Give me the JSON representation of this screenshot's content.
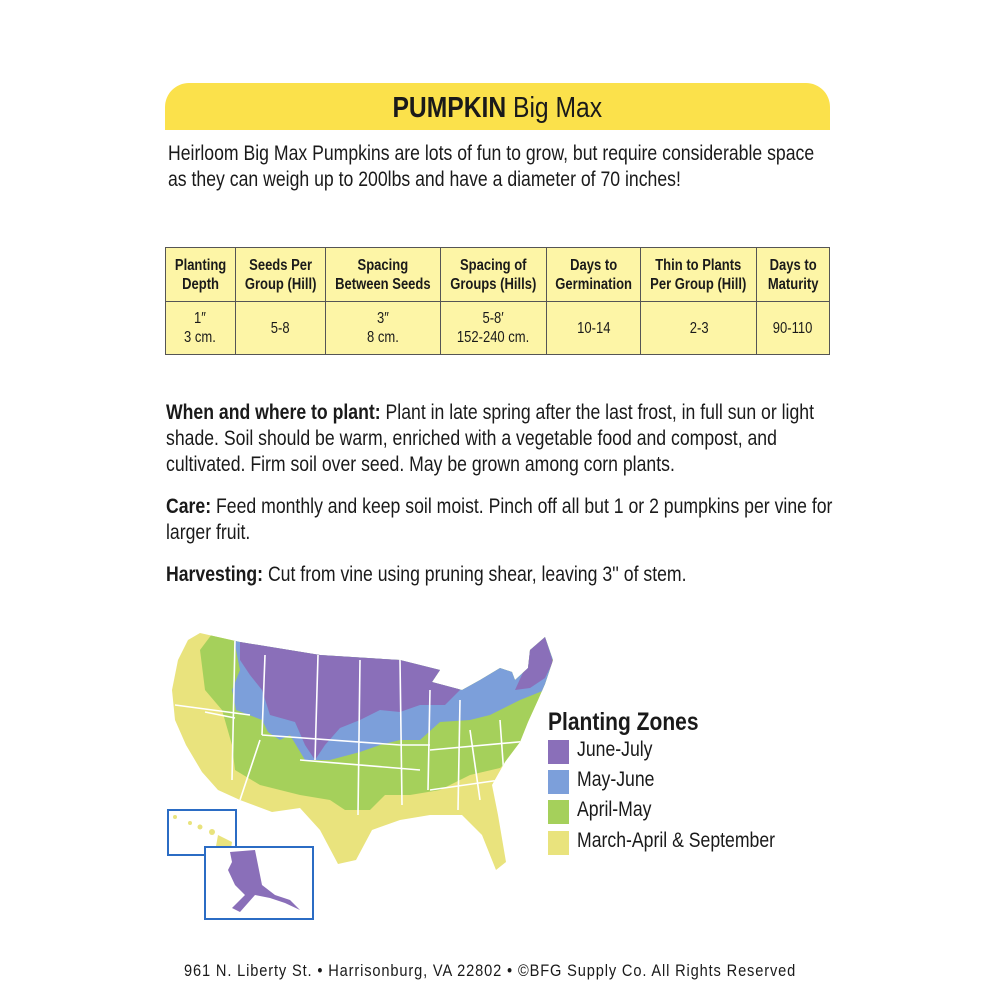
{
  "title": {
    "bold": "PUMPKIN",
    "variety": "Big Max"
  },
  "intro": "Heirloom Big Max Pumpkins are lots of fun to grow, but require considerable space as they can weigh up to 200lbs and have a diameter of 70 inches!",
  "table": {
    "headers": [
      [
        "Planting",
        "Depth"
      ],
      [
        "Seeds Per",
        "Group (Hill)"
      ],
      [
        "Spacing",
        "Between Seeds"
      ],
      [
        "Spacing of",
        "Groups (Hills)"
      ],
      [
        "Days to",
        "Germination"
      ],
      [
        "Thin to Plants",
        "Per Group (Hill)"
      ],
      [
        "Days to",
        "Maturity"
      ]
    ],
    "values": [
      [
        "1″",
        "3 cm."
      ],
      [
        "5-8",
        ""
      ],
      [
        "3″",
        "8 cm."
      ],
      [
        "5-8′",
        "152-240 cm."
      ],
      [
        "10-14",
        ""
      ],
      [
        "2-3",
        ""
      ],
      [
        "90-110",
        ""
      ]
    ]
  },
  "sections": [
    {
      "label": "When and where to plant:",
      "text": " Plant in late spring after the last frost, in full sun or light shade. Soil should be warm, enriched with a vegetable food and compost, and cultivated. Firm soil over seed. May be grown among corn plants."
    },
    {
      "label": "Care:",
      "text": " Feed monthly and keep soil moist. Pinch off all but 1 or 2 pumpkins per vine for larger fruit."
    },
    {
      "label": "Harvesting:",
      "text": " Cut from vine using pruning shear, leaving 3'' of stem."
    }
  ],
  "map": {
    "legend_title": "Planting Zones",
    "zones": [
      {
        "label": "June-July",
        "color": "#8a6fb9"
      },
      {
        "label": "May-June",
        "color": "#7c9fda"
      },
      {
        "label": "April-May",
        "color": "#a5d05b"
      },
      {
        "label": "March-April & September",
        "color": "#e9e37d"
      }
    ],
    "inset_border_color": "#2b6cc4"
  },
  "footer": "961 N. Liberty St. • Harrisonburg, VA 22802 • ©BFG Supply Co. All Rights Reserved"
}
